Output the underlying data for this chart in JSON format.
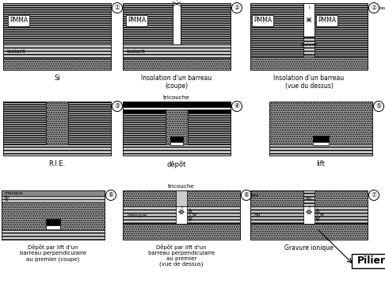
{
  "bg": "#ffffff",
  "gray_pmma": "#b0b0b0",
  "gray_si": "#b0b0b0",
  "gray_iso": "#d0d0d0",
  "white": "#ffffff",
  "black": "#000000",
  "captions": {
    "1": "Si",
    "2": "Insolation d'un barreau\n(coupe)",
    "2bis": "Insolation d'un barreau\n(vue du dessus)",
    "3": "R.I.E.",
    "4": "dêpôt",
    "5": "lift",
    "6": "Dêpôt par lift d'un\nbarreau perpendiculaire\nau premier (coupe)",
    "6bis": "Dêpôt par lift d'un\nbarreau perpendiculaire\nau premier\n(vue de dessus)",
    "7": "Gravure ionique"
  },
  "pilier_label": "Pilier"
}
